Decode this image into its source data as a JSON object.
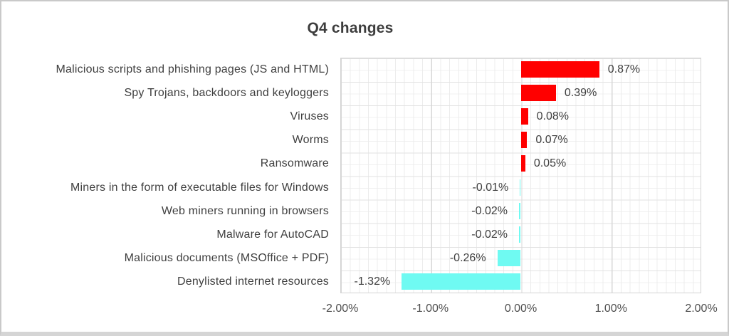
{
  "window": {
    "background_color": "#ffffff",
    "border_color": "#c9c9c9"
  },
  "header": {
    "title": "Q4 changes"
  },
  "chart_data": {
    "type": "bar",
    "orientation": "horizontal",
    "title": "Q4 changes",
    "categories": [
      "Malicious scripts and phishing pages (JS and HTML)",
      "Spy Trojans, backdoors and keyloggers",
      "Viruses",
      "Worms",
      "Ransomware",
      "Miners in the form of executable files for Windows",
      "Web miners running in browsers",
      "Malware for AutoCAD",
      "Malicious documents (MSOffice + PDF)",
      "Denylisted internet resources"
    ],
    "values": [
      0.87,
      0.39,
      0.08,
      0.07,
      0.05,
      -0.01,
      -0.02,
      -0.02,
      -0.26,
      -1.32
    ],
    "value_labels": [
      "0.87%",
      "0.39%",
      "0.08%",
      "0.07%",
      "0.05%",
      "-0.01%",
      "-0.02%",
      "-0.02%",
      "-0.26%",
      "-1.32%"
    ],
    "unit": "%",
    "xlabel": "",
    "ylabel": "",
    "xlim": [
      -2,
      2
    ],
    "x_ticks": [
      {
        "value": -2,
        "label": "-2.00%"
      },
      {
        "value": -1,
        "label": "-1.00%"
      },
      {
        "value": 0,
        "label": "0.00%"
      },
      {
        "value": 1,
        "label": "1.00%"
      },
      {
        "value": 2,
        "label": "2.00%"
      }
    ],
    "positive_color": "#ff0000",
    "negative_color": "#6ffaf2",
    "grid": "minor and major, both axes",
    "legend_position": "none"
  }
}
